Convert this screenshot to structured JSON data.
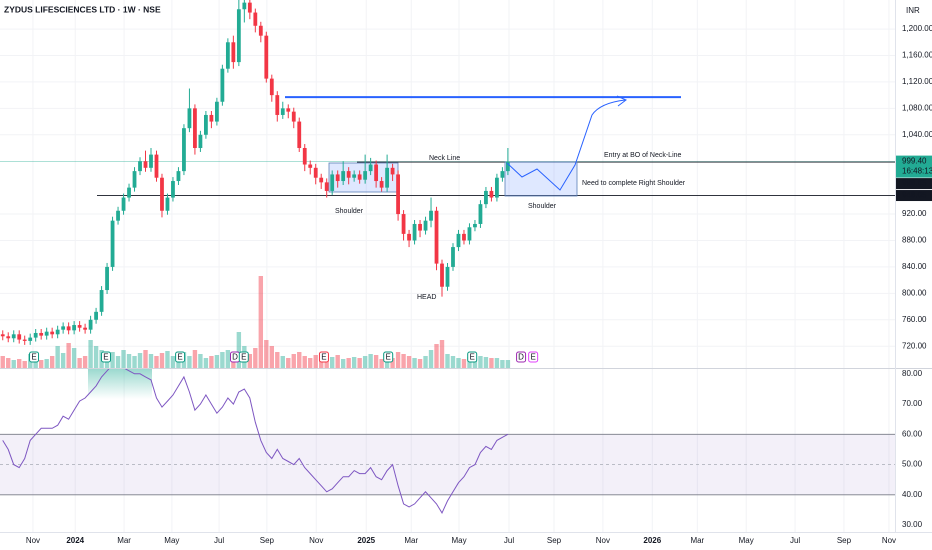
{
  "chart_data": {
    "type": "candlestick",
    "title": "ZYDUS LIFESCIENCES LTD · 1W · NSE",
    "currency": "INR",
    "up_color": "#22ab94",
    "down_color": "#f23645",
    "grid": true,
    "xlim": [
      0,
      163
    ],
    "xticks": [
      {
        "value": 6.0,
        "label": "Nov"
      },
      {
        "value": 13.7,
        "label": "2024"
      },
      {
        "value": 22.6,
        "label": "Mar"
      },
      {
        "value": 31.3,
        "label": "May"
      },
      {
        "value": 39.9,
        "label": "Jul"
      },
      {
        "value": 48.6,
        "label": "Sep"
      },
      {
        "value": 57.6,
        "label": "Nov"
      },
      {
        "value": 66.7,
        "label": "2025"
      },
      {
        "value": 74.9,
        "label": "Mar"
      },
      {
        "value": 83.6,
        "label": "May"
      },
      {
        "value": 92.7,
        "label": "Jul"
      },
      {
        "value": 100.9,
        "label": "Sep"
      },
      {
        "value": 109.8,
        "label": "Nov"
      },
      {
        "value": 118.8,
        "label": "2026"
      },
      {
        "value": 127.0,
        "label": "Mar"
      },
      {
        "value": 135.9,
        "label": "May"
      },
      {
        "value": 144.8,
        "label": "Jul"
      },
      {
        "value": 153.7,
        "label": "Sep"
      },
      {
        "value": 161.9,
        "label": "Nov"
      }
    ],
    "ylim": [
      687,
      1244
    ],
    "yticks": [
      {
        "value": 1200,
        "label": "1,200.00"
      },
      {
        "value": 1160,
        "label": "1,160.00"
      },
      {
        "value": 1120,
        "label": "1,120.00"
      },
      {
        "value": 1080,
        "label": "1,080.00"
      },
      {
        "value": 1040,
        "label": "1,040.00"
      },
      {
        "value": 920,
        "label": "920.00"
      },
      {
        "value": 880,
        "label": "880.00"
      },
      {
        "value": 840,
        "label": "840.00"
      },
      {
        "value": 800,
        "label": "800.00"
      },
      {
        "value": 760,
        "label": "760.00"
      },
      {
        "value": 720,
        "label": "720.00"
      }
    ],
    "open": [
      738,
      735,
      732,
      738,
      730,
      728,
      733,
      740,
      736,
      742,
      738,
      745,
      750,
      744,
      752,
      748,
      745,
      760,
      772,
      805,
      840,
      910,
      925,
      945,
      960,
      985,
      1000,
      990,
      1010,
      975,
      925,
      945,
      970,
      985,
      1050,
      1080,
      1020,
      1040,
      1070,
      1060,
      1090,
      1140,
      1180,
      1150,
      1230,
      1240,
      1225,
      1205,
      1190,
      1125,
      1100,
      1070,
      1080,
      1075,
      1060,
      1020,
      995,
      990,
      975,
      968,
      955,
      980,
      970,
      985,
      975,
      980,
      972,
      985,
      995,
      970,
      960,
      990,
      980,
      920,
      890,
      880,
      905,
      895,
      910,
      925,
      845,
      810,
      840,
      870,
      890,
      880,
      900,
      905,
      935,
      955,
      945,
      975,
      985
    ],
    "high": [
      744,
      741,
      744,
      744,
      736,
      739,
      746,
      746,
      748,
      748,
      751,
      756,
      756,
      758,
      758,
      754,
      766,
      778,
      811,
      846,
      916,
      931,
      951,
      966,
      991,
      1006,
      1016,
      1020,
      1016,
      981,
      951,
      976,
      991,
      1056,
      1110,
      1086,
      1046,
      1076,
      1076,
      1096,
      1146,
      1186,
      1190,
      1250,
      1260,
      1255,
      1231,
      1211,
      1196,
      1131,
      1106,
      1090,
      1086,
      1081,
      1066,
      1026,
      1001,
      996,
      981,
      974,
      986,
      986,
      1000,
      991,
      986,
      986,
      1010,
      1005,
      1001,
      976,
      1010,
      996,
      986,
      926,
      896,
      911,
      911,
      916,
      945,
      931,
      851,
      846,
      876,
      896,
      896,
      906,
      911,
      941,
      961,
      961,
      981,
      991,
      1020
    ],
    "low": [
      729,
      726,
      726,
      724,
      722,
      722,
      727,
      730,
      730,
      732,
      732,
      739,
      738,
      738,
      742,
      739,
      739,
      754,
      766,
      799,
      834,
      904,
      919,
      939,
      954,
      979,
      984,
      984,
      969,
      915,
      919,
      939,
      964,
      979,
      1044,
      1010,
      1014,
      1034,
      1050,
      1054,
      1084,
      1134,
      1140,
      1144,
      1210,
      1215,
      1195,
      1180,
      1119,
      1090,
      1060,
      1064,
      1065,
      1050,
      1014,
      985,
      980,
      965,
      958,
      945,
      949,
      960,
      964,
      965,
      969,
      966,
      966,
      979,
      960,
      954,
      954,
      970,
      910,
      880,
      870,
      874,
      885,
      889,
      900,
      835,
      795,
      804,
      834,
      864,
      874,
      874,
      894,
      899,
      929,
      939,
      939,
      969,
      979
    ],
    "close": [
      735,
      732,
      738,
      730,
      728,
      733,
      740,
      736,
      742,
      738,
      745,
      750,
      744,
      752,
      748,
      745,
      760,
      772,
      805,
      840,
      910,
      925,
      945,
      960,
      985,
      1000,
      990,
      1010,
      975,
      925,
      945,
      970,
      985,
      1050,
      1080,
      1020,
      1040,
      1070,
      1060,
      1090,
      1140,
      1180,
      1150,
      1230,
      1240,
      1225,
      1205,
      1190,
      1125,
      1100,
      1070,
      1080,
      1075,
      1060,
      1020,
      995,
      990,
      975,
      968,
      955,
      980,
      970,
      985,
      975,
      980,
      972,
      985,
      995,
      970,
      960,
      990,
      980,
      920,
      890,
      880,
      905,
      895,
      910,
      925,
      845,
      810,
      840,
      870,
      890,
      880,
      900,
      905,
      935,
      955,
      945,
      975,
      985,
      999.4
    ],
    "volume_lim": [
      0,
      100
    ],
    "volume": [
      12,
      10,
      8,
      9,
      7,
      14,
      10,
      8,
      9,
      12,
      22,
      15,
      25,
      20,
      10,
      12,
      28,
      22,
      18,
      14,
      16,
      12,
      18,
      14,
      12,
      15,
      18,
      14,
      12,
      15,
      17,
      12,
      14,
      16,
      12,
      18,
      14,
      10,
      12,
      13,
      16,
      18,
      14,
      36,
      22,
      14,
      20,
      92,
      28,
      22,
      16,
      12,
      10,
      14,
      16,
      12,
      10,
      13,
      10,
      12,
      11,
      13,
      9,
      10,
      11,
      10,
      12,
      14,
      13,
      9,
      11,
      10,
      16,
      14,
      12,
      10,
      9,
      12,
      18,
      24,
      28,
      14,
      12,
      10,
      9,
      11,
      10,
      12,
      11,
      10,
      10,
      8,
      8
    ],
    "last_price": {
      "value": 999.4,
      "label": "999.40",
      "countdown": "16:48:13"
    },
    "levels": [
      {
        "value": 998.65,
        "label": "998.65"
      },
      {
        "value": 948.05,
        "label": "948.05"
      }
    ],
    "target": 1097,
    "annotations": {
      "neck_line": "Neck Line",
      "entry": "Entry at BO of Neck-Line",
      "right_shoulder": "Need to complete Right Shoulder",
      "shoulder_left": "Shoulder",
      "shoulder_right": "Shoulder",
      "head": "HEAD"
    },
    "events": [
      {
        "x": 6.2,
        "label": "E",
        "color": "#089981"
      },
      {
        "x": 19.3,
        "label": "E",
        "color": "#089981"
      },
      {
        "x": 32.8,
        "label": "E",
        "color": "#089981"
      },
      {
        "x": 42.8,
        "label": "D",
        "color": "#9c27b0"
      },
      {
        "x": 44.4,
        "label": "E",
        "color": "#089981"
      },
      {
        "x": 59.0,
        "label": "E",
        "color": "#f23645"
      },
      {
        "x": 70.7,
        "label": "E",
        "color": "#089981"
      },
      {
        "x": 86.0,
        "label": "E",
        "color": "#089981"
      },
      {
        "x": 94.9,
        "label": "D",
        "color": "#9c27b0"
      },
      {
        "x": 97.1,
        "label": "E",
        "color": "#e040fb"
      }
    ],
    "rsi": {
      "color": "#7e57c2",
      "ylim": [
        27.7,
        81.6
      ],
      "yticks": [
        {
          "value": 80,
          "label": "80.00"
        },
        {
          "value": 70,
          "label": "70.00"
        },
        {
          "value": 60,
          "label": "60.00"
        },
        {
          "value": 50,
          "label": "50.00"
        },
        {
          "value": 40,
          "label": "40.00"
        },
        {
          "value": 30,
          "label": "30.00"
        }
      ],
      "bands": [
        40,
        60
      ],
      "mid": 50,
      "values": [
        58,
        55,
        50,
        49,
        52,
        58,
        60,
        62,
        62,
        62,
        63,
        66,
        65,
        68,
        71,
        72,
        74,
        76,
        79,
        81,
        83,
        83,
        82,
        81,
        80,
        80,
        79,
        78,
        72,
        69,
        71,
        73,
        76,
        79,
        74,
        68,
        70,
        73,
        70,
        67,
        69,
        72,
        70,
        74,
        75,
        72,
        64,
        58,
        54,
        52,
        55,
        52,
        51,
        50,
        52,
        49,
        47,
        45,
        43,
        41,
        42,
        44,
        46,
        46,
        48,
        47,
        47,
        49,
        46,
        45,
        48,
        50,
        43,
        37,
        36,
        37,
        39,
        41,
        39,
        37,
        34,
        38,
        41,
        44,
        46,
        49,
        50,
        54,
        56,
        55,
        58,
        59,
        60
      ]
    }
  }
}
